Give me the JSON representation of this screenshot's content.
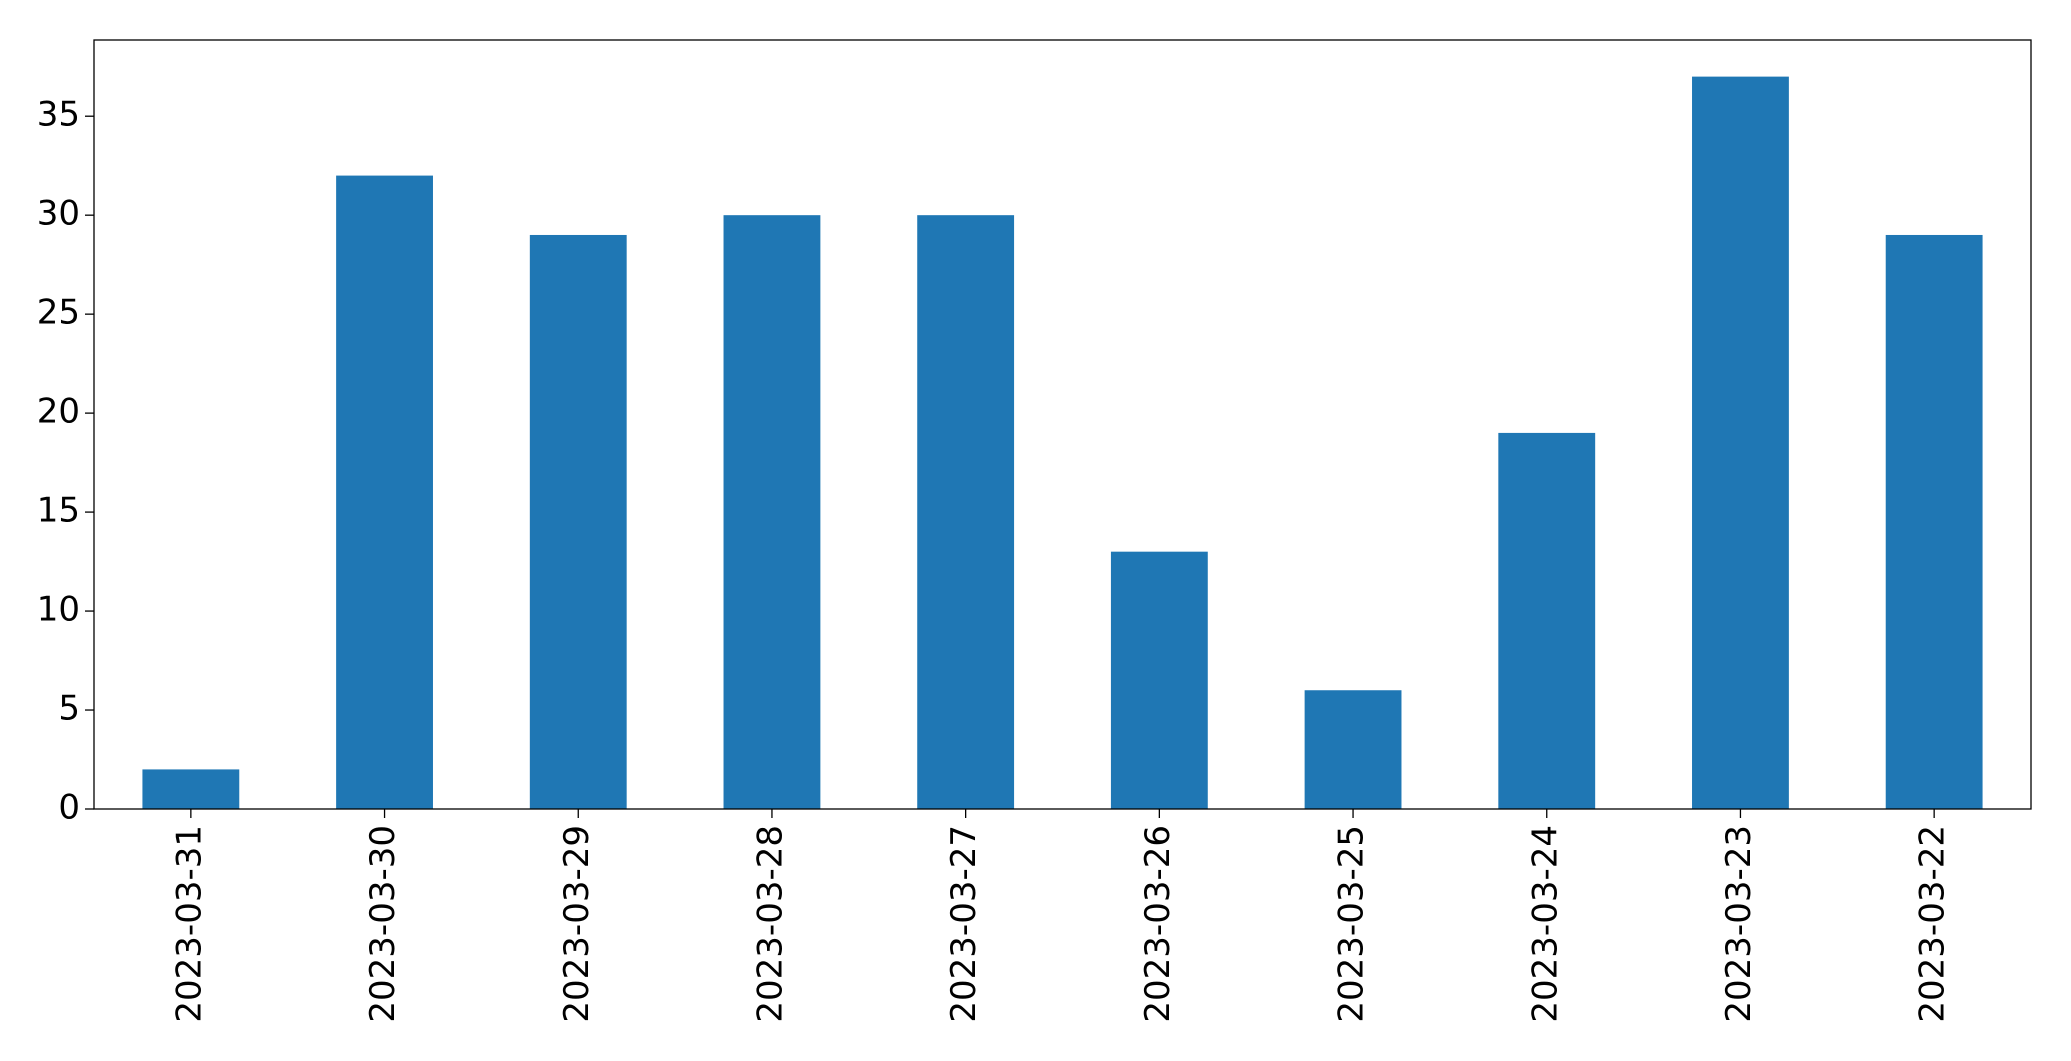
{
  "chart_data": {
    "type": "bar",
    "categories": [
      "2023-03-31",
      "2023-03-30",
      "2023-03-29",
      "2023-03-28",
      "2023-03-27",
      "2023-03-26",
      "2023-03-25",
      "2023-03-24",
      "2023-03-23",
      "2023-03-22"
    ],
    "values": [
      2,
      32,
      29,
      30,
      30,
      13,
      6,
      19,
      37,
      29
    ],
    "color": "#1f77b4",
    "ylim": [
      0,
      38.85
    ],
    "yticks": [
      0,
      5,
      10,
      15,
      20,
      25,
      30,
      35
    ],
    "grid": false
  }
}
